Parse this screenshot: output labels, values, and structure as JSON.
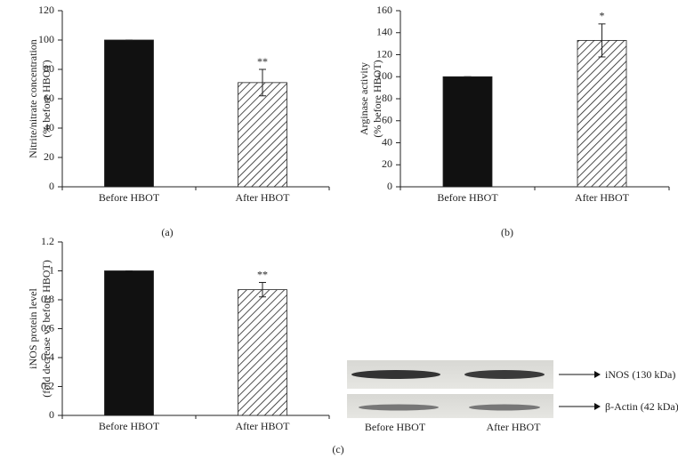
{
  "chart_data": [
    {
      "type": "bar",
      "caption": "(a)",
      "ylabel": [
        "Nitrite/nitrate concentration",
        "(% before HBOT)"
      ],
      "categories": [
        "Before HBOT",
        "After HBOT"
      ],
      "values": [
        100,
        71
      ],
      "errors": [
        0,
        9
      ],
      "annotations": [
        null,
        "**"
      ],
      "colors": [
        "#111111",
        "#ffffff"
      ],
      "hatch": [
        false,
        true
      ],
      "ylim": [
        0,
        120
      ],
      "yticks": [
        0,
        20,
        40,
        60,
        80,
        100,
        120
      ]
    },
    {
      "type": "bar",
      "caption": "(b)",
      "ylabel": [
        "Arginase activity",
        "(% before HBOT)"
      ],
      "categories": [
        "Before HBOT",
        "After HBOT"
      ],
      "values": [
        100,
        133
      ],
      "errors": [
        0,
        15
      ],
      "annotations": [
        null,
        "*"
      ],
      "colors": [
        "#111111",
        "#ffffff"
      ],
      "hatch": [
        false,
        true
      ],
      "ylim": [
        0,
        160
      ],
      "yticks": [
        0,
        20,
        40,
        60,
        80,
        100,
        120,
        140,
        160
      ]
    },
    {
      "type": "bar",
      "caption": "(c)",
      "ylabel": [
        "iNOS protein level",
        "(fold decrease vs before HBOT)"
      ],
      "categories": [
        "Before HBOT",
        "After HBOT"
      ],
      "values": [
        1,
        0.87
      ],
      "errors": [
        0,
        0.05
      ],
      "annotations": [
        null,
        "**"
      ],
      "colors": [
        "#111111",
        "#ffffff"
      ],
      "hatch": [
        false,
        true
      ],
      "ylim": [
        0,
        1.2
      ],
      "yticks": [
        0,
        0.2,
        0.4,
        0.6,
        0.8,
        1,
        1.2
      ]
    }
  ],
  "blot": {
    "bands": [
      "iNOS (130 kDa)",
      "β-Actin (42 kDa)"
    ],
    "lanes": [
      "Before HBOT",
      "After HBOT"
    ]
  }
}
